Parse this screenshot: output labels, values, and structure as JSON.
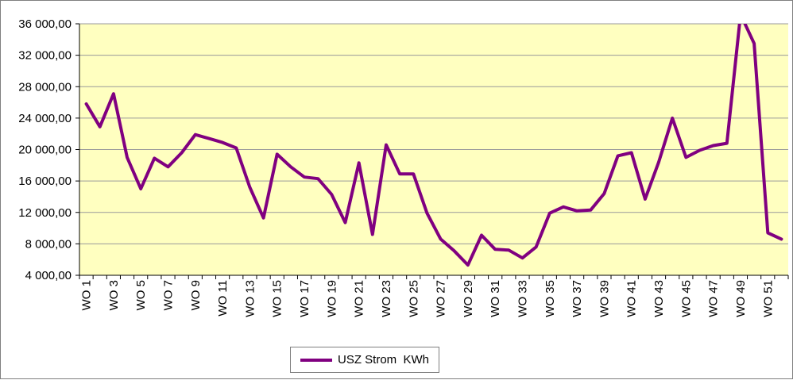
{
  "colors": {
    "plot_background": "#ffffc0",
    "line": "#800080",
    "grid": "#9a9a9a",
    "axis": "#000000",
    "frame_border": "#7f7f7f"
  },
  "chart_data": {
    "type": "line",
    "title": "",
    "xlabel": "",
    "ylabel": "",
    "categories": [
      "WO 1",
      "WO 2",
      "WO 3",
      "WO 4",
      "WO 5",
      "WO 6",
      "WO 7",
      "WO 8",
      "WO 9",
      "WO 10",
      "WO 11",
      "WO 12",
      "WO 13",
      "WO 14",
      "WO 15",
      "WO 16",
      "WO 17",
      "WO 18",
      "WO 19",
      "WO 20",
      "WO 21",
      "WO 22",
      "WO 23",
      "WO 24",
      "WO 25",
      "WO 26",
      "WO 27",
      "WO 28",
      "WO 29",
      "WO 30",
      "WO 31",
      "WO 32",
      "WO 33",
      "WO 34",
      "WO 35",
      "WO 36",
      "WO 37",
      "WO 38",
      "WO 39",
      "WO 40",
      "WO 41",
      "WO 42",
      "WO 43",
      "WO 44",
      "WO 45",
      "WO 46",
      "WO 47",
      "WO 48",
      "WO 49",
      "WO 50",
      "WO 51",
      "WO 52"
    ],
    "x_tick_labels": [
      "WO 1",
      "WO 3",
      "WO 5",
      "WO 7",
      "WO 9",
      "WO 11",
      "WO 13",
      "WO 15",
      "WO 17",
      "WO 19",
      "WO 21",
      "WO 23",
      "WO 25",
      "WO 27",
      "WO 29",
      "WO 31",
      "WO 33",
      "WO 35",
      "WO 37",
      "WO 39",
      "WO 41",
      "WO 43",
      "WO 45",
      "WO 47",
      "WO 49",
      "WO 51"
    ],
    "y_tick_labels": [
      "4 000,00",
      "8 000,00",
      "12 000,00",
      "16 000,00",
      "20 000,00",
      "24 000,00",
      "28 000,00",
      "32 000,00",
      "36 000,00"
    ],
    "ylim": [
      4000,
      36000
    ],
    "grid": true,
    "legend_position": "bottom",
    "series": [
      {
        "name": "USZ Strom  KWh",
        "values": [
          25800,
          22900,
          27100,
          19000,
          15000,
          18900,
          17800,
          19600,
          21900,
          21400,
          20900,
          20200,
          15200,
          11300,
          19400,
          17800,
          16500,
          16300,
          14300,
          10700,
          18300,
          9200,
          20600,
          16900,
          16900,
          11900,
          8600,
          7100,
          5300,
          9100,
          7300,
          7200,
          6200,
          7600,
          11900,
          12700,
          12200,
          12300,
          14400,
          19200,
          19600,
          13700,
          18400,
          24000,
          19000,
          19900,
          20500,
          20800,
          37200,
          33500,
          9400,
          8600
        ]
      }
    ]
  }
}
